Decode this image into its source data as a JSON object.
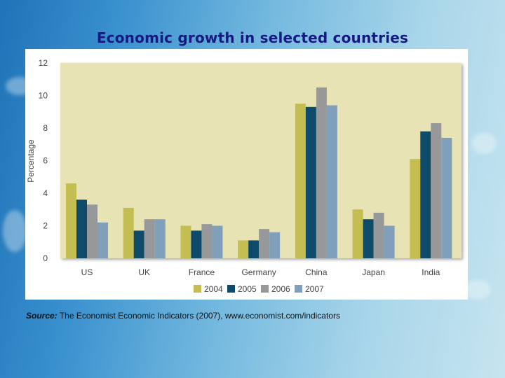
{
  "slide": {
    "title": "Economic growth in selected countries",
    "source_label": "Source:",
    "source_text": "The Economist Economic Indicators (2007), www.economist.com/indicators"
  },
  "colors": {
    "background_light": "#c6e4ef",
    "background_dark": "#1f73b8",
    "title": "#151a80",
    "plot_bg": "#e7e3b5",
    "series": [
      "#c4bd52",
      "#0e4a6a",
      "#96989a",
      "#7f9fba"
    ]
  },
  "chart_data": {
    "type": "bar",
    "title": "",
    "xlabel": "",
    "ylabel": "Percentage",
    "ylim": [
      0,
      12
    ],
    "yticks": [
      0,
      2,
      4,
      6,
      8,
      10,
      12
    ],
    "grid": false,
    "legend_position": "bottom",
    "categories": [
      "US",
      "UK",
      "France",
      "Germany",
      "China",
      "Japan",
      "India"
    ],
    "series": [
      {
        "name": "2004",
        "values": [
          4.6,
          3.1,
          2.0,
          1.1,
          9.5,
          3.0,
          6.1
        ]
      },
      {
        "name": "2005",
        "values": [
          3.6,
          1.7,
          1.7,
          1.1,
          9.3,
          2.4,
          7.8
        ]
      },
      {
        "name": "2006",
        "values": [
          3.3,
          2.4,
          2.1,
          1.8,
          10.5,
          2.8,
          8.3
        ]
      },
      {
        "name": "2007",
        "values": [
          2.2,
          2.4,
          2.0,
          1.6,
          9.4,
          2.0,
          7.4
        ]
      }
    ]
  }
}
